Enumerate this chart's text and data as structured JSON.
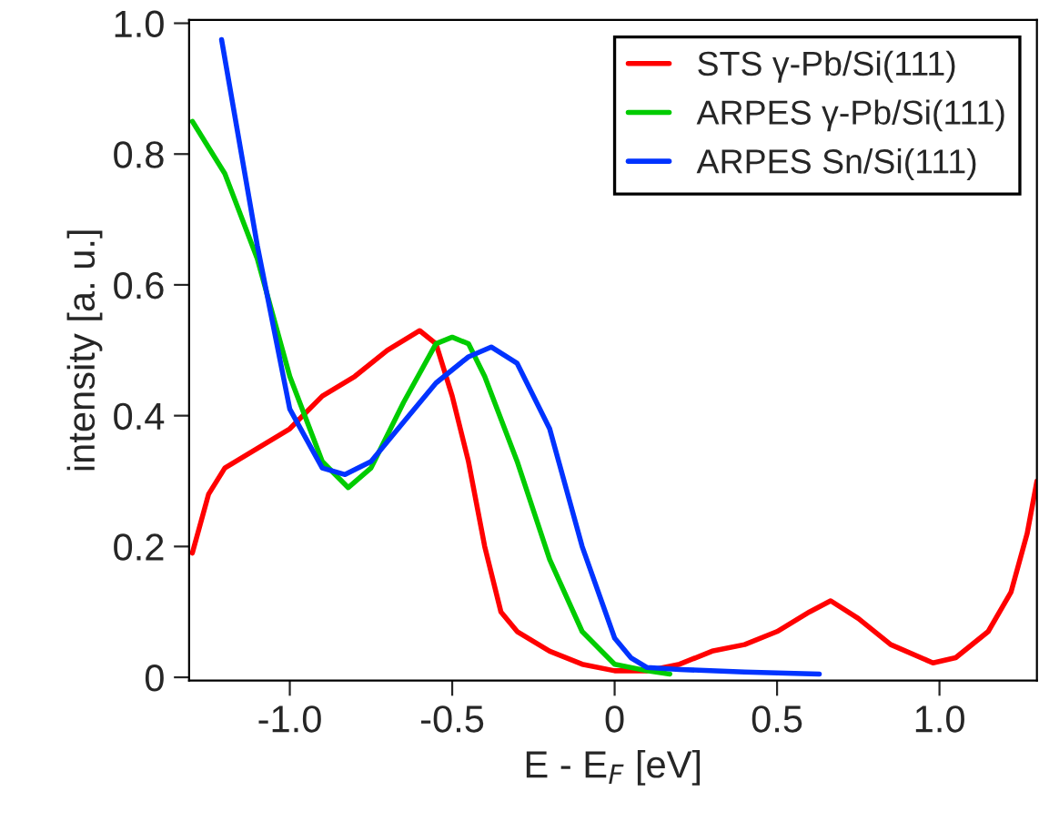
{
  "chart_data": {
    "type": "line",
    "xlabel": "E - E$_{F}$ [eV]",
    "ylabel": "intensity [a. u.]",
    "xlim": [
      -1.31,
      1.3
    ],
    "ylim": [
      -0.005,
      1.005
    ],
    "xticks": [
      {
        "value": -1.0,
        "label": "-1.0"
      },
      {
        "value": -0.5,
        "label": "-0.5"
      },
      {
        "value": 0,
        "label": "0"
      },
      {
        "value": 0.5,
        "label": "0.5"
      },
      {
        "value": 1.0,
        "label": "1.0"
      }
    ],
    "yticks": [
      {
        "value": 0,
        "label": "0"
      },
      {
        "value": 0.2,
        "label": "0.2"
      },
      {
        "value": 0.4,
        "label": "0.4"
      },
      {
        "value": 0.6,
        "label": "0.6"
      },
      {
        "value": 0.8,
        "label": "0.8"
      },
      {
        "value": 1.0,
        "label": "1.0"
      }
    ],
    "grid": false,
    "legend": "top right",
    "marker": "none",
    "line_style": "solid",
    "series": [
      {
        "name": "STS γ-Pb/Si(111)",
        "color": "#ff0000",
        "x": [
          -1.3,
          -1.25,
          -1.2,
          -1.1,
          -1.0,
          -0.9,
          -0.8,
          -0.7,
          -0.6,
          -0.55,
          -0.5,
          -0.45,
          -0.4,
          -0.35,
          -0.3,
          -0.2,
          -0.1,
          0,
          0.1,
          0.2,
          0.3,
          0.4,
          0.5,
          0.6,
          0.665,
          0.75,
          0.85,
          0.98,
          1.05,
          1.15,
          1.22,
          1.27,
          1.3
        ],
        "values": [
          0.19,
          0.28,
          0.32,
          0.35,
          0.38,
          0.43,
          0.46,
          0.5,
          0.53,
          0.51,
          0.43,
          0.33,
          0.2,
          0.1,
          0.07,
          0.04,
          0.02,
          0.01,
          0.01,
          0.02,
          0.04,
          0.05,
          0.07,
          0.1,
          0.117,
          0.09,
          0.05,
          0.022,
          0.03,
          0.07,
          0.13,
          0.22,
          0.3
        ]
      },
      {
        "name": "ARPES γ-Pb/Si(111)",
        "color": "#00cc00",
        "x": [
          -1.3,
          -1.2,
          -1.1,
          -1.0,
          -0.9,
          -0.82,
          -0.75,
          -0.65,
          -0.55,
          -0.5,
          -0.45,
          -0.4,
          -0.3,
          -0.2,
          -0.1,
          0,
          0.1,
          0.17
        ],
        "values": [
          0.85,
          0.77,
          0.64,
          0.46,
          0.33,
          0.29,
          0.32,
          0.42,
          0.51,
          0.52,
          0.51,
          0.46,
          0.33,
          0.18,
          0.07,
          0.02,
          0.01,
          0.005
        ]
      },
      {
        "name": "ARPES Sn/Si(111)",
        "color": "#0033ff",
        "x": [
          -1.21,
          -1.1,
          -1.0,
          -0.9,
          -0.83,
          -0.75,
          -0.65,
          -0.55,
          -0.45,
          -0.38,
          -0.3,
          -0.2,
          -0.1,
          0,
          0.05,
          0.1,
          0.2,
          0.4,
          0.63
        ],
        "values": [
          0.975,
          0.66,
          0.41,
          0.32,
          0.31,
          0.33,
          0.39,
          0.45,
          0.49,
          0.505,
          0.48,
          0.38,
          0.2,
          0.06,
          0.03,
          0.015,
          0.012,
          0.008,
          0.005
        ]
      }
    ]
  }
}
